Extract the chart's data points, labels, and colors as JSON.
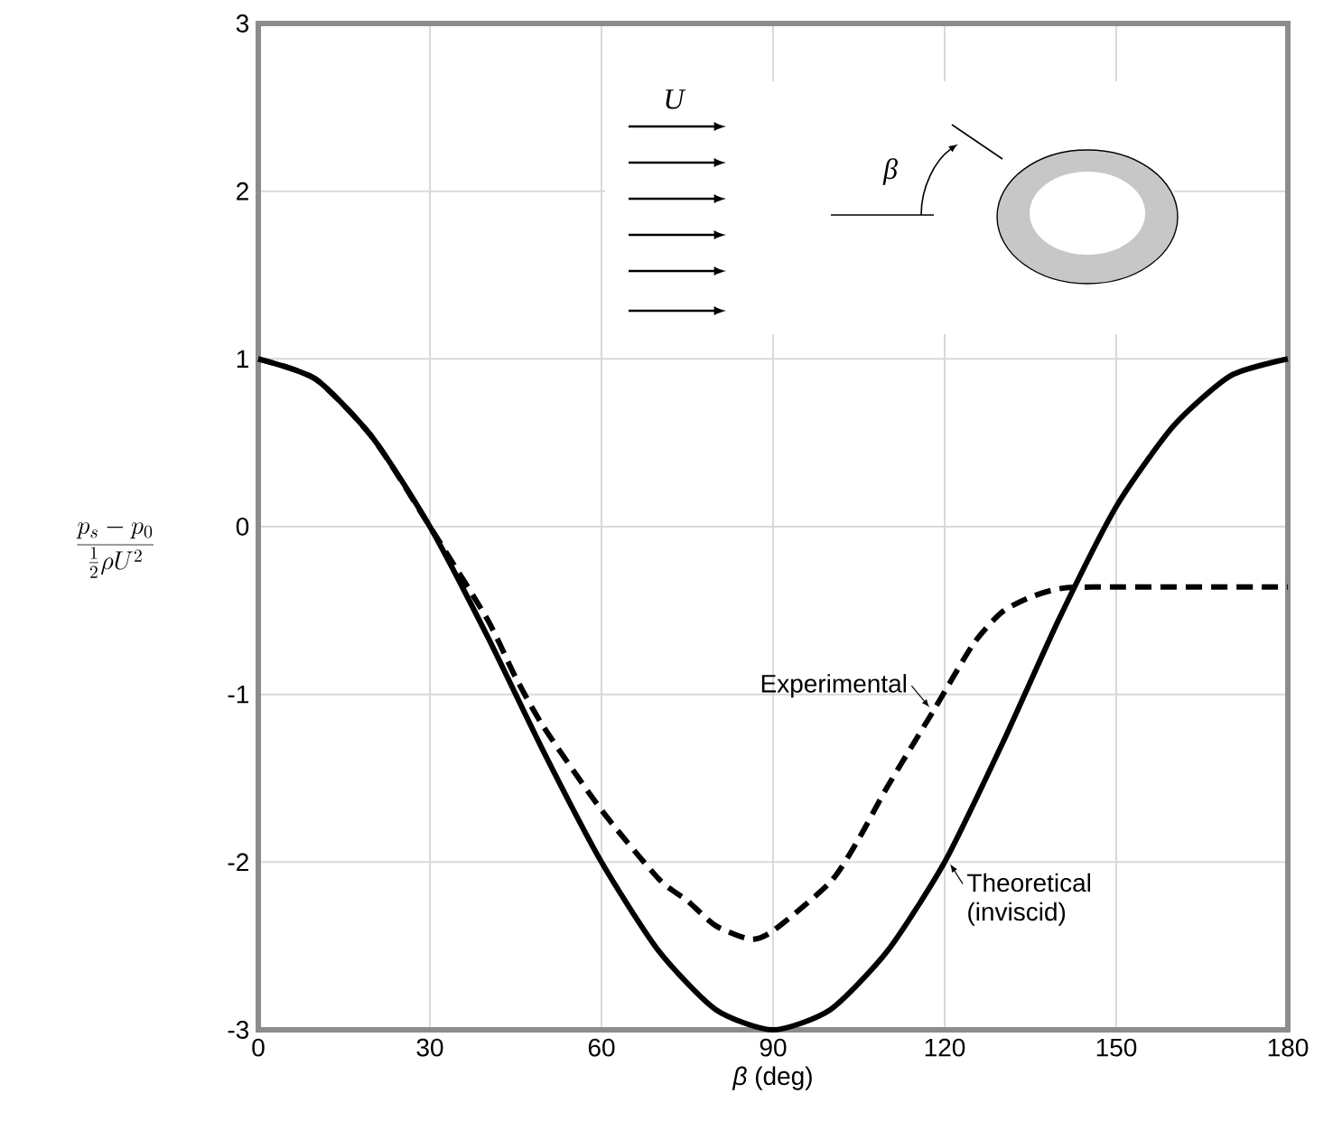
{
  "chart_data": {
    "type": "line",
    "xlabel": "*β* (deg)",
    "ylabel": "\\frac{p_s-p_0}{\\frac{1}{2}\\rho U^2}",
    "xlim": [
      0,
      180
    ],
    "ylim": [
      -3,
      3
    ],
    "xticks": [
      0,
      30,
      60,
      90,
      120,
      150,
      180
    ],
    "yticks": [
      -3,
      -2,
      -1,
      0,
      1,
      2,
      3
    ],
    "grid": true,
    "marker": "none",
    "series": [
      {
        "name": "Experimental",
        "color": "#000000",
        "line_style": "dashed",
        "x": [
          0,
          10,
          20,
          30,
          40,
          45,
          50,
          60,
          70,
          75,
          80,
          86,
          90,
          100,
          105,
          110,
          118,
          125,
          130,
          135,
          140,
          146,
          180
        ],
        "values": [
          1,
          0.88,
          0.53,
          0.0,
          -0.55,
          -0.9,
          -1.2,
          -1.69,
          -2.1,
          -2.23,
          -2.38,
          -2.46,
          -2.41,
          -2.12,
          -1.86,
          -1.55,
          -1.1,
          -0.7,
          -0.51,
          -0.42,
          -0.37,
          -0.36,
          -0.36
        ]
      },
      {
        "name": "Theoretical (inviscid)",
        "color": "#000000",
        "line_style": "solid",
        "x": [
          0,
          10,
          20,
          30,
          40,
          50,
          60,
          70,
          80,
          90,
          100,
          110,
          120,
          130,
          140,
          150,
          160,
          170,
          180
        ],
        "values": [
          1,
          0.88,
          0.53,
          0.0,
          -0.65,
          -1.35,
          -2.0,
          -2.53,
          -2.88,
          -3.0,
          -2.88,
          -2.53,
          -2.0,
          -1.3,
          -0.55,
          0.12,
          0.6,
          0.9,
          1.0
        ]
      }
    ],
    "annotations": [
      "U",
      "β"
    ]
  }
}
